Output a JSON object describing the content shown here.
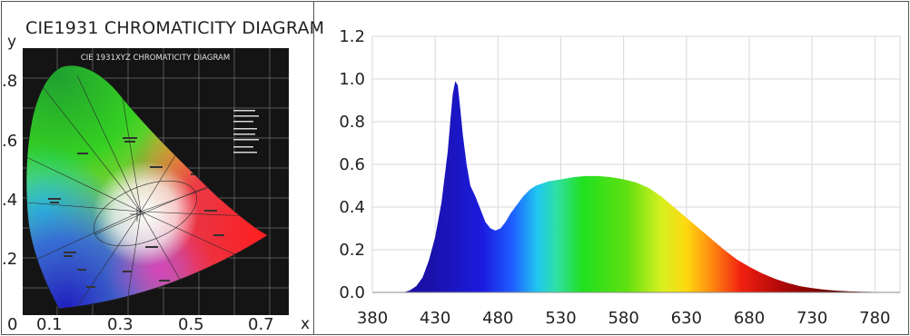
{
  "left_panel": {
    "title": "CIE1931 CHROMATICITY DIAGRAM",
    "inner_title": "CIE 1931XYZ CHROMATICITY DIAGRAM",
    "x_axis_letter": "x",
    "y_axis_letter": "y",
    "x_tick_labels": [
      "0",
      "0.1",
      "0.3",
      "0.5",
      "0.7"
    ],
    "y_tick_labels": [
      ".8",
      ".6",
      ".4",
      ".2"
    ]
  },
  "colors": {
    "cie_background": "#141414",
    "cie_grid": "#6f6f6f",
    "spectrum_grid": "#d9d9d9",
    "frame": "#555555"
  },
  "chart_data": {
    "type": "area",
    "title": "",
    "xlabel": "",
    "ylabel": "",
    "xlim": [
      380,
      800
    ],
    "ylim": [
      0,
      1.2
    ],
    "x_ticks": [
      380,
      430,
      480,
      530,
      580,
      630,
      680,
      730,
      780
    ],
    "y_ticks": [
      0.0,
      0.2,
      0.4,
      0.6,
      0.8,
      1.0,
      1.2
    ],
    "y_tick_labels": [
      "0.0",
      "0.2",
      "0.4",
      "0.6",
      "0.8",
      "1.0",
      "1.2"
    ],
    "grid": true,
    "fill": "wavelength-colored spectrum",
    "series": [
      {
        "x": [
          405,
          410,
          415,
          420,
          425,
          430,
          435,
          440,
          442,
          444,
          446,
          448,
          450,
          452,
          455,
          458,
          462,
          466,
          470,
          474,
          478,
          482,
          486,
          490,
          495,
          500,
          505,
          510,
          515,
          520,
          530,
          540,
          550,
          560,
          570,
          580,
          590,
          600,
          610,
          620,
          630,
          640,
          650,
          660,
          670,
          680,
          690,
          700,
          710,
          720,
          730,
          740,
          750,
          760,
          770,
          780,
          790,
          800
        ],
        "y": [
          0.0,
          0.01,
          0.03,
          0.07,
          0.15,
          0.26,
          0.42,
          0.66,
          0.8,
          0.93,
          0.99,
          0.97,
          0.86,
          0.74,
          0.6,
          0.5,
          0.45,
          0.39,
          0.33,
          0.3,
          0.29,
          0.3,
          0.33,
          0.37,
          0.41,
          0.45,
          0.48,
          0.5,
          0.51,
          0.52,
          0.53,
          0.54,
          0.545,
          0.545,
          0.54,
          0.53,
          0.515,
          0.49,
          0.45,
          0.4,
          0.35,
          0.3,
          0.25,
          0.2,
          0.155,
          0.12,
          0.09,
          0.065,
          0.045,
          0.03,
          0.02,
          0.013,
          0.008,
          0.005,
          0.003,
          0.002,
          0.001,
          0.0
        ]
      }
    ]
  }
}
